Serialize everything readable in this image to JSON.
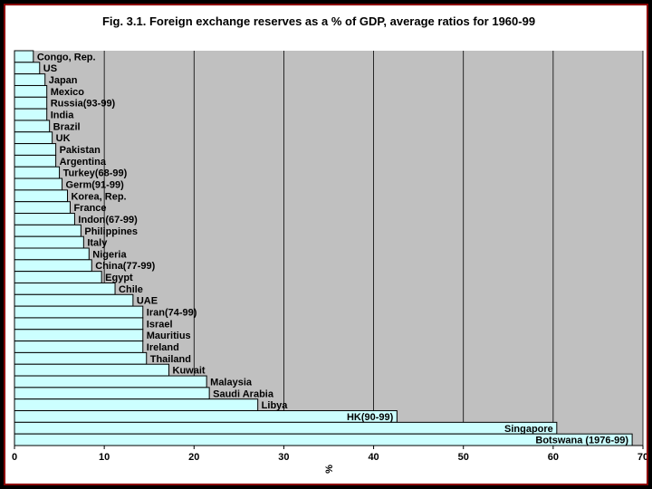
{
  "chart_data": {
    "type": "bar",
    "orientation": "horizontal",
    "title": "Fig. 3.1. Foreign exchange reserves as a % of GDP, average ratios for 1960-99",
    "xlabel": "%",
    "ylabel": "",
    "xlim": [
      0,
      70
    ],
    "xticks": [
      0,
      10,
      20,
      30,
      40,
      50,
      60,
      70
    ],
    "grid": "vertical",
    "legend": "none",
    "colors": {
      "plot_background": "#c0c0c0",
      "bar_fill": "#ccffff",
      "bar_stroke": "#000000",
      "frame": "#8b0000",
      "page_background": "#000000"
    },
    "categories": [
      "Congo, Rep.",
      "US",
      "Japan",
      "Mexico",
      "Russia(93-99)",
      "India",
      "Brazil",
      "UK",
      "Pakistan",
      "Argentina",
      "Turkey(68-99)",
      "Germ(91-99)",
      "Korea, Rep.",
      "France",
      "Indon(67-99)",
      "Philippines",
      "Italy",
      "Nigeria",
      "China(77-99)",
      "Egypt",
      "Chile",
      "UAE",
      "Iran(74-99)",
      "Israel",
      "Mauritius",
      "Ireland",
      "Thailand",
      "Kuwait",
      "Malaysia",
      "Saudi Arabia",
      "Libya",
      "HK(90-99)",
      "Singapore",
      "Botswana (1976-99)"
    ],
    "values": [
      2.1,
      2.8,
      3.4,
      3.6,
      3.6,
      3.6,
      3.9,
      4.2,
      4.6,
      4.6,
      5.0,
      5.3,
      5.9,
      6.2,
      6.7,
      7.4,
      7.7,
      8.3,
      8.6,
      9.7,
      11.2,
      13.2,
      14.3,
      14.3,
      14.3,
      14.3,
      14.7,
      17.2,
      21.4,
      21.7,
      27.1,
      42.6,
      60.4,
      68.8
    ],
    "label_position": {
      "HK(90-99)": "inside-end",
      "Singapore": "inside-end",
      "Botswana (1976-99)": "inside-end"
    }
  }
}
